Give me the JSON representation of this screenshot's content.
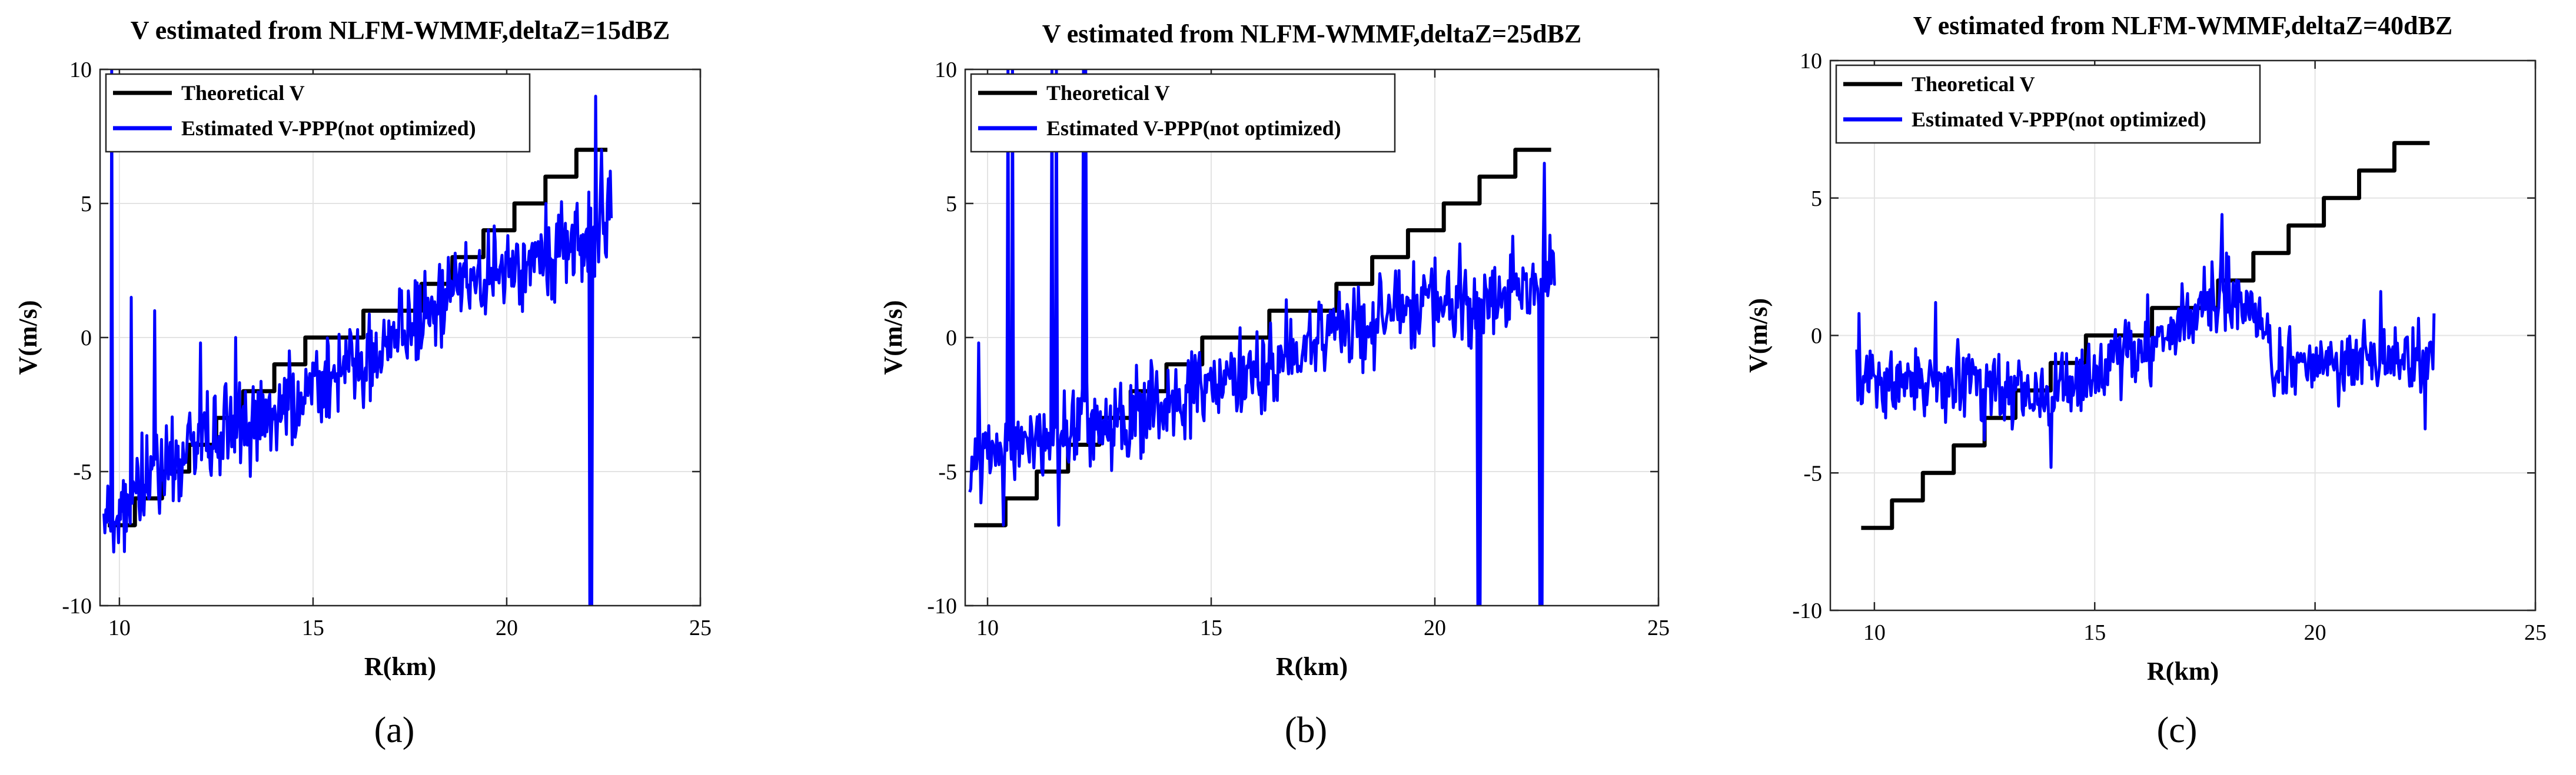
{
  "chart_data": [
    {
      "type": "line",
      "title": "V estimated from NLFM-WMMF,deltaZ=15dBZ",
      "xlabel": "R(km)",
      "ylabel": "V(m/s)",
      "xlim": [
        9.5,
        25
      ],
      "ylim": [
        -10,
        10
      ],
      "xticks": [
        "10",
        "15",
        "20",
        "25"
      ],
      "yticks": [
        "-10",
        "-5",
        "0",
        "5",
        "10"
      ],
      "grid": true,
      "panel_letter": "(a)",
      "legend": {
        "placement": "top-left",
        "entries": [
          "Theoretical V",
          "Estimated V-PPP(not optimized)"
        ]
      },
      "series": [
        {
          "name": "Theoretical V",
          "color": "#000000",
          "kind": "step",
          "x": [
            9.7,
            10.4,
            10.4,
            11.1,
            11.1,
            11.8,
            11.8,
            12.5,
            12.5,
            13.2,
            13.2,
            14.0,
            14.0,
            14.8,
            14.8,
            15.5,
            15.5,
            16.3,
            16.3,
            17.0,
            17.0,
            17.8,
            17.8,
            18.6,
            18.6,
            19.4,
            19.4,
            20.2,
            20.2,
            21.0,
            21.0,
            21.8,
            21.8,
            22.6
          ],
          "y": [
            -7,
            -7,
            -6,
            -6,
            -5,
            -5,
            -4,
            -4,
            -3,
            -3,
            -2,
            -2,
            -1,
            -1,
            0,
            0,
            0,
            0,
            1,
            1,
            1,
            1,
            2,
            2,
            3,
            3,
            4,
            4,
            5,
            5,
            6,
            6,
            7,
            7
          ]
        },
        {
          "name": "Estimated V-PPP(not optimized)",
          "color": "#0000ff",
          "kind": "noisy",
          "x_start": 9.6,
          "x_end": 22.7,
          "trend": [
            [
              9.6,
              -7
            ],
            [
              12.0,
              -4
            ],
            [
              15.0,
              -2
            ],
            [
              17.0,
              0
            ],
            [
              19.0,
              2
            ],
            [
              21.0,
              3
            ],
            [
              22.7,
              4
            ]
          ],
          "noise": 1.3,
          "spikes": [
            [
              9.8,
              10
            ],
            [
              9.85,
              -8
            ],
            [
              10.3,
              1.5
            ],
            [
              10.9,
              1.0
            ],
            [
              12.1,
              -0.2
            ],
            [
              13.0,
              0
            ],
            [
              21.0,
              5
            ],
            [
              22.15,
              -10
            ],
            [
              22.2,
              -10
            ],
            [
              22.3,
              9
            ],
            [
              22.45,
              7
            ]
          ]
        }
      ]
    },
    {
      "type": "line",
      "title": "V estimated from NLFM-WMMF,deltaZ=25dBZ",
      "xlabel": "R(km)",
      "ylabel": "V(m/s)",
      "xlim": [
        9.5,
        25
      ],
      "ylim": [
        -10,
        10
      ],
      "xticks": [
        "10",
        "15",
        "20",
        "25"
      ],
      "yticks": [
        "-10",
        "-5",
        "0",
        "5",
        "10"
      ],
      "grid": true,
      "panel_letter": "(b)",
      "legend": {
        "placement": "top-left",
        "entries": [
          "Theoretical V",
          "Estimated V-PPP(not optimized)"
        ]
      },
      "series": [
        {
          "name": "Theoretical V",
          "color": "#000000",
          "kind": "step",
          "x": [
            9.7,
            10.4,
            10.4,
            11.1,
            11.1,
            11.8,
            11.8,
            12.5,
            12.5,
            13.2,
            13.2,
            14.0,
            14.0,
            14.8,
            14.8,
            15.5,
            15.5,
            16.3,
            16.3,
            17.0,
            17.0,
            17.8,
            17.8,
            18.6,
            18.6,
            19.4,
            19.4,
            20.2,
            20.2,
            21.0,
            21.0,
            21.8,
            21.8,
            22.6
          ],
          "y": [
            -7,
            -7,
            -6,
            -6,
            -5,
            -5,
            -4,
            -4,
            -3,
            -3,
            -2,
            -2,
            -1,
            -1,
            0,
            0,
            0,
            0,
            1,
            1,
            1,
            1,
            2,
            2,
            3,
            3,
            4,
            4,
            5,
            5,
            6,
            6,
            7,
            7
          ]
        },
        {
          "name": "Estimated V-PPP(not optimized)",
          "color": "#0000ff",
          "kind": "noisy",
          "x_start": 9.6,
          "x_end": 22.7,
          "trend": [
            [
              9.6,
              -5
            ],
            [
              12.0,
              -3.5
            ],
            [
              15.0,
              -2
            ],
            [
              17.0,
              -0.5
            ],
            [
              19.0,
              1.0
            ],
            [
              21.0,
              1.5
            ],
            [
              22.7,
              2
            ]
          ],
          "noise": 1.2,
          "spikes": [
            [
              9.8,
              -0.2
            ],
            [
              10.35,
              -7
            ],
            [
              10.45,
              10
            ],
            [
              10.55,
              10
            ],
            [
              11.45,
              10
            ],
            [
              11.55,
              10
            ],
            [
              11.6,
              -7
            ],
            [
              12.15,
              10
            ],
            [
              12.2,
              10
            ],
            [
              20.95,
              -10
            ],
            [
              21.0,
              -10
            ],
            [
              21.05,
              1
            ],
            [
              22.35,
              -10
            ],
            [
              22.4,
              -10
            ],
            [
              22.45,
              6.5
            ],
            [
              22.7,
              2
            ]
          ]
        }
      ]
    },
    {
      "type": "line",
      "title": "V estimated from NLFM-WMMF,deltaZ=40dBZ",
      "xlabel": "R(km)",
      "ylabel": "V(m/s)",
      "xlim": [
        9,
        25
      ],
      "ylim": [
        -10,
        10
      ],
      "xticks": [
        "10",
        "15",
        "20",
        "25"
      ],
      "yticks": [
        "-10",
        "-5",
        "0",
        "5",
        "10"
      ],
      "grid": true,
      "panel_letter": "(c)",
      "legend": {
        "placement": "top-left",
        "entries": [
          "Theoretical V",
          "Estimated V-PPP(not optimized)"
        ]
      },
      "series": [
        {
          "name": "Theoretical V",
          "color": "#000000",
          "kind": "step",
          "x": [
            9.7,
            10.4,
            10.4,
            11.1,
            11.1,
            11.8,
            11.8,
            12.5,
            12.5,
            13.2,
            13.2,
            14.0,
            14.0,
            14.8,
            14.8,
            15.5,
            15.5,
            16.3,
            16.3,
            17.0,
            17.0,
            17.8,
            17.8,
            18.6,
            18.6,
            19.4,
            19.4,
            20.2,
            20.2,
            21.0,
            21.0,
            21.8,
            21.8,
            22.6
          ],
          "y": [
            -7,
            -7,
            -6,
            -6,
            -5,
            -5,
            -4,
            -4,
            -3,
            -3,
            -2,
            -2,
            -1,
            -1,
            0,
            0,
            0,
            0,
            1,
            1,
            1,
            1,
            2,
            2,
            3,
            3,
            4,
            4,
            5,
            5,
            6,
            6,
            7,
            7
          ]
        },
        {
          "name": "Estimated V-PPP(not optimized)",
          "color": "#0000ff",
          "kind": "noisy",
          "x_start": 9.6,
          "x_end": 22.7,
          "trend": [
            [
              9.6,
              -1.5
            ],
            [
              12.0,
              -1.8
            ],
            [
              14.0,
              -2.2
            ],
            [
              16.0,
              -0.5
            ],
            [
              18.0,
              1.5
            ],
            [
              18.9,
              0.5
            ],
            [
              19.0,
              -1.2
            ],
            [
              22.7,
              -0.8
            ]
          ],
          "noise": 1.0,
          "spikes": [
            [
              9.65,
              0.8
            ],
            [
              11.4,
              1.2
            ],
            [
              12.5,
              -3.8
            ],
            [
              14.0,
              -4.8
            ],
            [
              17.9,
              4.4
            ],
            [
              18.0,
              3
            ],
            [
              21.5,
              1.6
            ],
            [
              22.5,
              -3.4
            ],
            [
              22.7,
              0.8
            ]
          ]
        }
      ]
    }
  ]
}
